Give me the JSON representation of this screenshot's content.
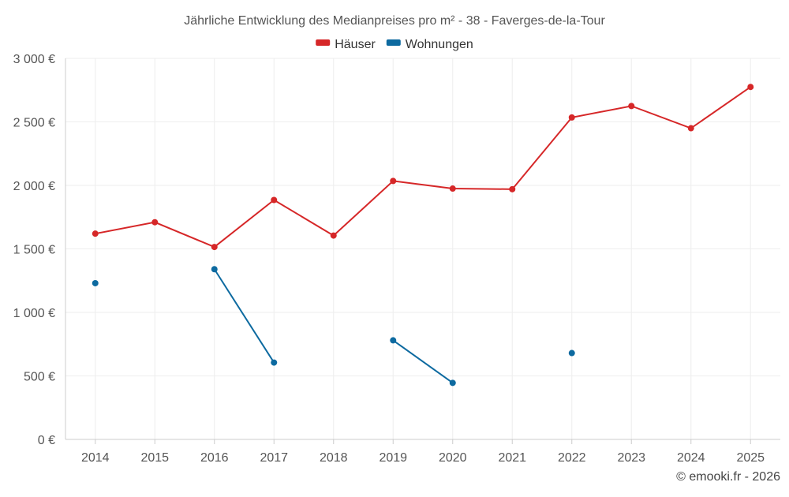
{
  "chart_data": {
    "type": "line",
    "title": "Jährliche Entwicklung des Medianpreises pro m² - 38 - Faverges-de-la-Tour",
    "categories": [
      "2014",
      "2015",
      "2016",
      "2017",
      "2018",
      "2019",
      "2020",
      "2021",
      "2022",
      "2023",
      "2024",
      "2025"
    ],
    "ylim": [
      0,
      3000
    ],
    "yticks": [
      0,
      500,
      1000,
      1500,
      2000,
      2500,
      3000
    ],
    "ytick_labels": [
      "0 €",
      "500 €",
      "1 000 €",
      "1 500 €",
      "2 000 €",
      "2 500 €",
      "3 000 €"
    ],
    "grid": true,
    "legend_position": "top-center",
    "series": [
      {
        "name": "Häuser",
        "color": "#d62728",
        "values": [
          1620,
          1710,
          1515,
          1885,
          1605,
          2035,
          1975,
          1970,
          2535,
          2625,
          2450,
          2775
        ]
      },
      {
        "name": "Wohnungen",
        "color": "#0d6aa0",
        "values": [
          1230,
          null,
          1340,
          605,
          null,
          780,
          445,
          null,
          680,
          null,
          null,
          null
        ]
      }
    ]
  },
  "credit": "© emooki.fr - 2026"
}
